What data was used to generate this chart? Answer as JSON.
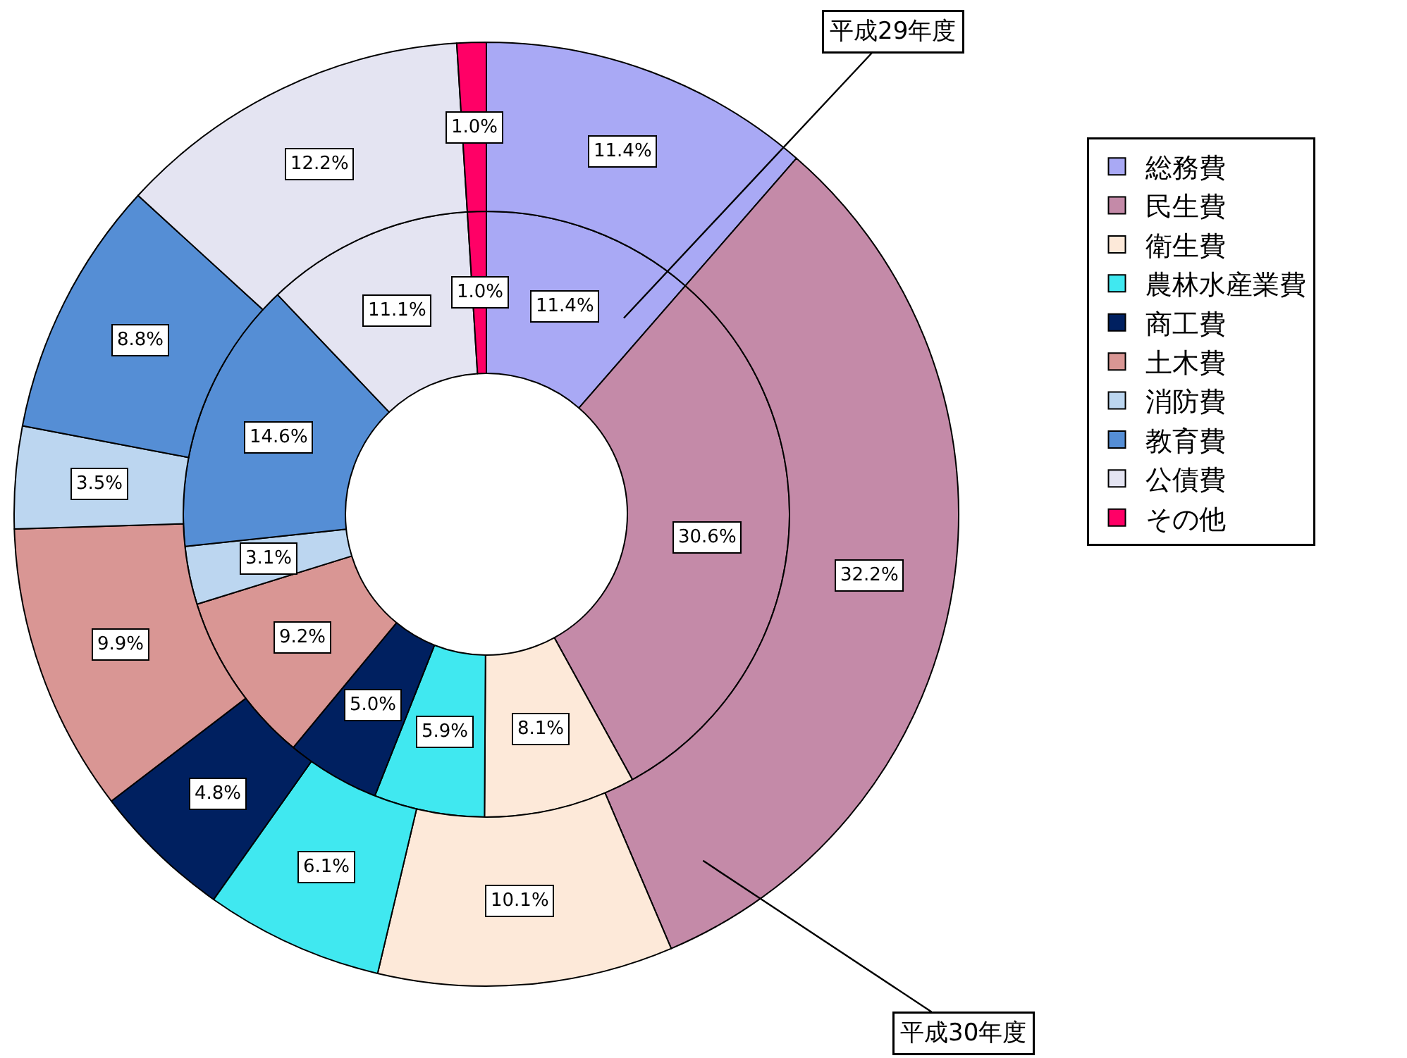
{
  "chart_data": {
    "type": "donut",
    "categories": [
      "総務費",
      "民生費",
      "衛生費",
      "農林水産業費",
      "商工費",
      "土木費",
      "消防費",
      "教育費",
      "公債費",
      "その他"
    ],
    "colors": [
      "#a9a9f5",
      "#c48aa8",
      "#fde9d9",
      "#40e8f0",
      "#002060",
      "#d99694",
      "#bcd6f0",
      "#558ed5",
      "#e4e4f2",
      "#ff0066"
    ],
    "series": [
      {
        "name": "平成29年度",
        "values": [
          11.4,
          30.6,
          8.1,
          5.9,
          5.0,
          9.2,
          3.1,
          14.6,
          11.1,
          1.0
        ],
        "value_labels": [
          "11.4%",
          "30.6%",
          "8.1%",
          "5.9%",
          "5.0%",
          "9.2%",
          "3.1%",
          "14.6%",
          "11.1%",
          "1.0%"
        ]
      },
      {
        "name": "平成30年度",
        "values": [
          11.4,
          32.2,
          10.1,
          6.1,
          4.8,
          9.9,
          3.5,
          8.8,
          12.2,
          1.0
        ],
        "value_labels": [
          "11.4%",
          "32.2%",
          "10.1%",
          "6.1%",
          "4.8%",
          "9.9%",
          "3.5%",
          "8.8%",
          "12.2%",
          "1.0%"
        ]
      }
    ],
    "legend": "right"
  }
}
